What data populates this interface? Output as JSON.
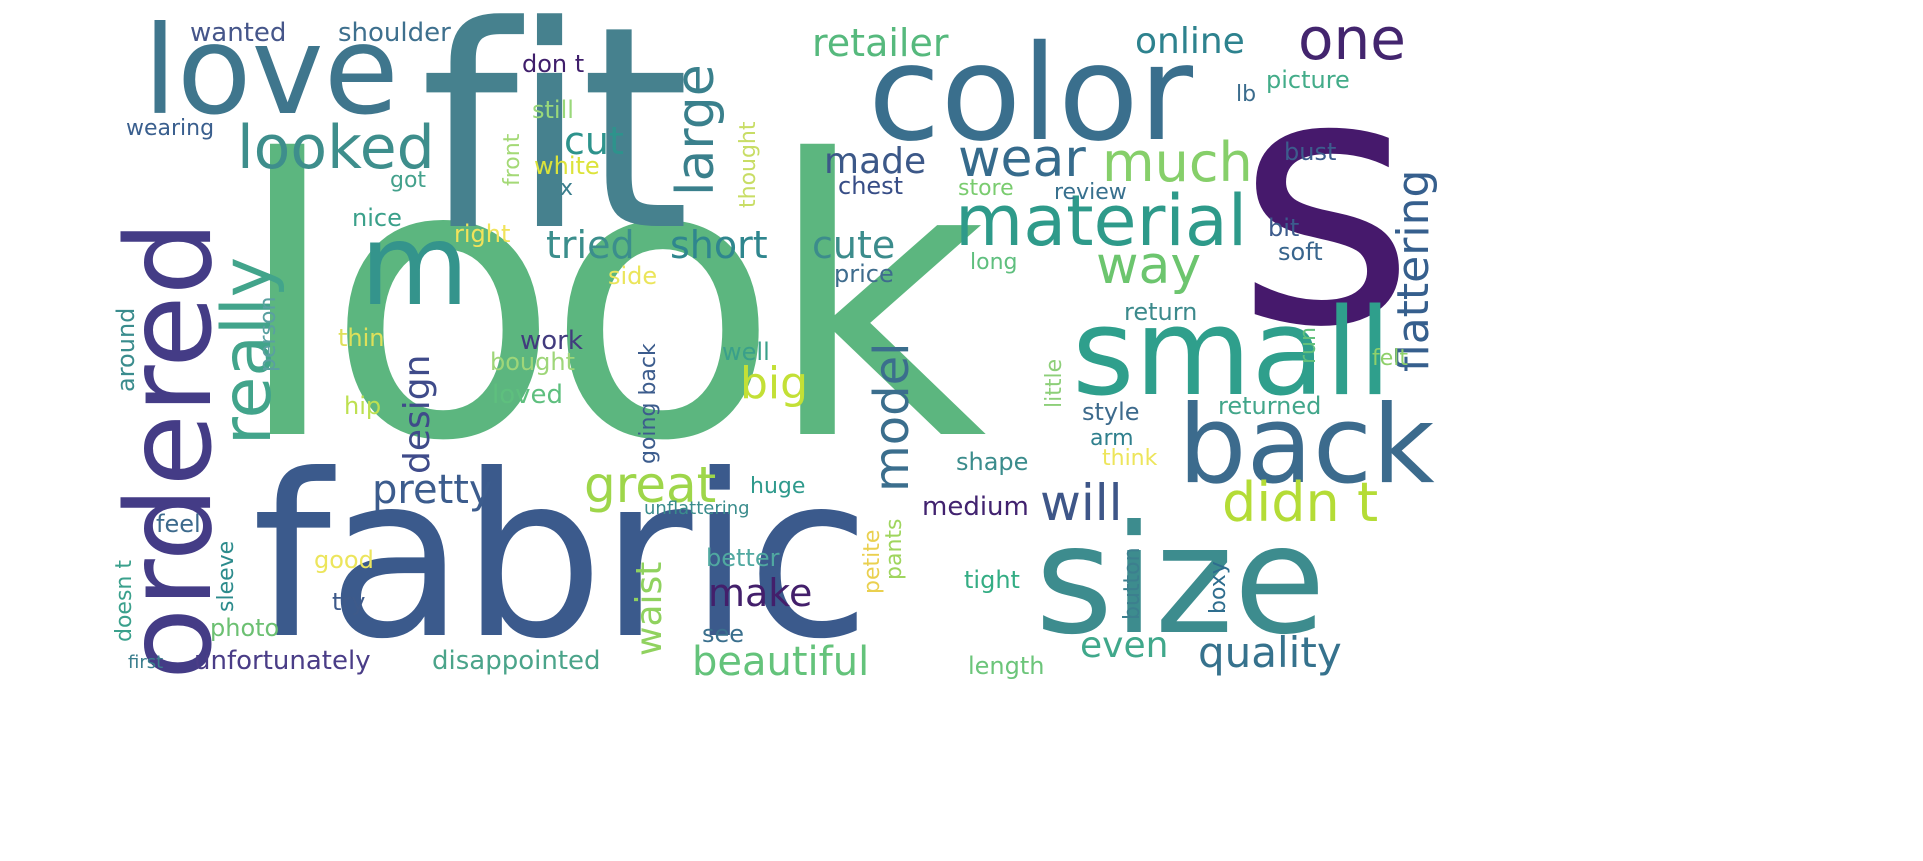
{
  "words": [
    {
      "text": "look",
      "color": "#5cb67f"
    },
    {
      "text": "fit",
      "color": "#46818e"
    },
    {
      "text": "s",
      "color": "#46196c"
    },
    {
      "text": "fabric",
      "color": "#3b5a8c"
    },
    {
      "text": "size",
      "color": "#3d8c8e"
    },
    {
      "text": "color",
      "color": "#3a6f8d"
    },
    {
      "text": "ordered",
      "color": "#443c86"
    },
    {
      "text": "love",
      "color": "#3f768d"
    },
    {
      "text": "back",
      "color": "#3c6b8d"
    },
    {
      "text": "small",
      "color": "#2f9f8c"
    },
    {
      "text": "m",
      "color": "#34948c"
    },
    {
      "text": "material",
      "color": "#2e9a8a"
    },
    {
      "text": "really",
      "color": "#42a48b"
    },
    {
      "text": "looked",
      "color": "#3e8e8c"
    },
    {
      "text": "one",
      "color": "#43256e"
    },
    {
      "text": "large",
      "color": "#3a808c"
    },
    {
      "text": "wear",
      "color": "#366b8c"
    },
    {
      "text": "much",
      "color": "#86cf6a"
    },
    {
      "text": "way",
      "color": "#6cc56e"
    },
    {
      "text": "didn t",
      "color": "#b4dc36"
    },
    {
      "text": "will",
      "color": "#3e5688"
    },
    {
      "text": "great",
      "color": "#9ed64a"
    },
    {
      "text": "model",
      "color": "#3b6e8d"
    },
    {
      "text": "pretty",
      "color": "#3c5c8d"
    },
    {
      "text": "flattering",
      "color": "#365f8d"
    },
    {
      "text": "quality",
      "color": "#36728d"
    },
    {
      "text": "beautiful",
      "color": "#64c37b"
    },
    {
      "text": "retailer",
      "color": "#56b97d"
    },
    {
      "text": "online",
      "color": "#2d828e"
    },
    {
      "text": "tried",
      "color": "#3b8e8c"
    },
    {
      "text": "short",
      "color": "#2f868e"
    },
    {
      "text": "cute",
      "color": "#3c8c8c"
    },
    {
      "text": "cut",
      "color": "#2d938c"
    },
    {
      "text": "made",
      "color": "#3c5888"
    },
    {
      "text": "big",
      "color": "#c3e036"
    },
    {
      "text": "design",
      "color": "#3f4b8a"
    },
    {
      "text": "make",
      "color": "#431f6b"
    },
    {
      "text": "waist",
      "color": "#90d25f"
    },
    {
      "text": "even",
      "color": "#40a88b"
    },
    {
      "text": "unfortunately",
      "color": "#4a3d87"
    },
    {
      "text": "disappointed",
      "color": "#4ba48a"
    },
    {
      "text": "wanted",
      "color": "#46568a"
    },
    {
      "text": "shoulder",
      "color": "#3e708e"
    },
    {
      "text": "don t",
      "color": "#3f1e6b"
    },
    {
      "text": "still",
      "color": "#9ad87a"
    },
    {
      "text": "wearing",
      "color": "#3a5f8e"
    },
    {
      "text": "white",
      "color": "#dce33a"
    },
    {
      "text": "front",
      "color": "#a4d976"
    },
    {
      "text": "got",
      "color": "#44a18c"
    },
    {
      "text": "x",
      "color": "#3a7e8d"
    },
    {
      "text": "thought",
      "color": "#c8dd65"
    },
    {
      "text": "nice",
      "color": "#3aa08a"
    },
    {
      "text": "right",
      "color": "#f1e35a"
    },
    {
      "text": "side",
      "color": "#ebe55b"
    },
    {
      "text": "price",
      "color": "#3e6c8d"
    },
    {
      "text": "chest",
      "color": "#374d86"
    },
    {
      "text": "store",
      "color": "#7acc6f"
    },
    {
      "text": "review",
      "color": "#38708e"
    },
    {
      "text": "picture",
      "color": "#43ac89"
    },
    {
      "text": "lb",
      "color": "#3b6c8d"
    },
    {
      "text": "bust",
      "color": "#3d5c8d"
    },
    {
      "text": "bit",
      "color": "#3c5b8c"
    },
    {
      "text": "soft",
      "color": "#38658d"
    },
    {
      "text": "long",
      "color": "#5fbf7e"
    },
    {
      "text": "return",
      "color": "#3c8a8c"
    },
    {
      "text": "run",
      "color": "#62c07c"
    },
    {
      "text": "felt",
      "color": "#8fd06b"
    },
    {
      "text": "little",
      "color": "#8dcf79"
    },
    {
      "text": "returned",
      "color": "#42a68a"
    },
    {
      "text": "style",
      "color": "#3d6a8c"
    },
    {
      "text": "arm",
      "color": "#2f7f8d"
    },
    {
      "text": "think",
      "color": "#ede55b"
    },
    {
      "text": "shape",
      "color": "#3b8c8c"
    },
    {
      "text": "around",
      "color": "#3a8c8d"
    },
    {
      "text": "person",
      "color": "#5aa0a0"
    },
    {
      "text": "thin",
      "color": "#dfe05a"
    },
    {
      "text": "work",
      "color": "#423b7e"
    },
    {
      "text": "bought",
      "color": "#9ed679"
    },
    {
      "text": "going back",
      "color": "#3c5c8d"
    },
    {
      "text": "well",
      "color": "#3aa08a"
    },
    {
      "text": "loved",
      "color": "#5ebf7e"
    },
    {
      "text": "hip",
      "color": "#bde050"
    },
    {
      "text": "huge",
      "color": "#2f9a8c"
    },
    {
      "text": "unflattering",
      "color": "#3a8c8c"
    },
    {
      "text": "medium",
      "color": "#41226f"
    },
    {
      "text": "feel",
      "color": "#3d6a8c"
    },
    {
      "text": "petite",
      "color": "#ead04f"
    },
    {
      "text": "pants",
      "color": "#9fd55e"
    },
    {
      "text": "better",
      "color": "#50a8a0"
    },
    {
      "text": "tight",
      "color": "#34ad84"
    },
    {
      "text": "button",
      "color": "#3c7f8e"
    },
    {
      "text": "boxy",
      "color": "#2e6d8e"
    },
    {
      "text": "good",
      "color": "#ece55c"
    },
    {
      "text": "sleeve",
      "color": "#2c8b8c"
    },
    {
      "text": "doesn t",
      "color": "#3aa08c"
    },
    {
      "text": "try",
      "color": "#3e5a8a"
    },
    {
      "text": "photo",
      "color": "#6cc072"
    },
    {
      "text": "see",
      "color": "#3a6f8d"
    },
    {
      "text": "first",
      "color": "#3a7e8d"
    },
    {
      "text": "length",
      "color": "#6cc57a"
    }
  ]
}
